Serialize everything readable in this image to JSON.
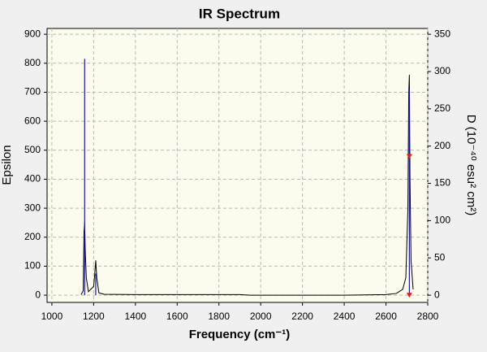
{
  "chart_data": {
    "type": "line",
    "title": "IR Spectrum",
    "x_label": "Frequency (cm⁻¹)",
    "y_label": "Epsilon",
    "y2_label": "D (10⁻⁴⁰ esu² cm²)",
    "xlim": [
      977,
      2800
    ],
    "xticks": [
      1000,
      1200,
      1400,
      1600,
      1800,
      2000,
      2200,
      2400,
      2600,
      2800
    ],
    "ylim": [
      -25,
      920
    ],
    "yticks": [
      0,
      100,
      200,
      300,
      400,
      500,
      600,
      700,
      800,
      900
    ],
    "y2lim": [
      -9.7,
      357.8
    ],
    "y2ticks": [
      0,
      50,
      100,
      150,
      200,
      250,
      300,
      350
    ],
    "grid": true,
    "series": [
      {
        "mark": "line",
        "color": "#000000",
        "x": [
          1140,
          1150,
          1154,
          1157,
          1160,
          1165,
          1175,
          1200,
          1205,
          1210,
          1215,
          1225,
          1250,
          1400,
          1600,
          1800,
          1900,
          1950,
          2200,
          2400,
          2600,
          2650,
          2680,
          2695,
          2705,
          2709,
          2712,
          2715,
          2720,
          2730
        ],
        "values": [
          2,
          15,
          220,
          250,
          150,
          60,
          12,
          30,
          70,
          120,
          60,
          8,
          3,
          2,
          2,
          2,
          2,
          0,
          0,
          0,
          2,
          6,
          20,
          60,
          300,
          700,
          760,
          400,
          120,
          20
        ]
      },
      {
        "mark": "stick",
        "color": "#1a1aa0",
        "axis": "y2",
        "x": [
          1157,
          1210,
          2712
        ],
        "values": [
          317,
          29,
          276
        ]
      },
      {
        "mark": "triangle",
        "color": "#e02020",
        "axis": "y2",
        "x": [
          2712,
          2712
        ],
        "values": [
          186,
          0
        ]
      }
    ]
  }
}
